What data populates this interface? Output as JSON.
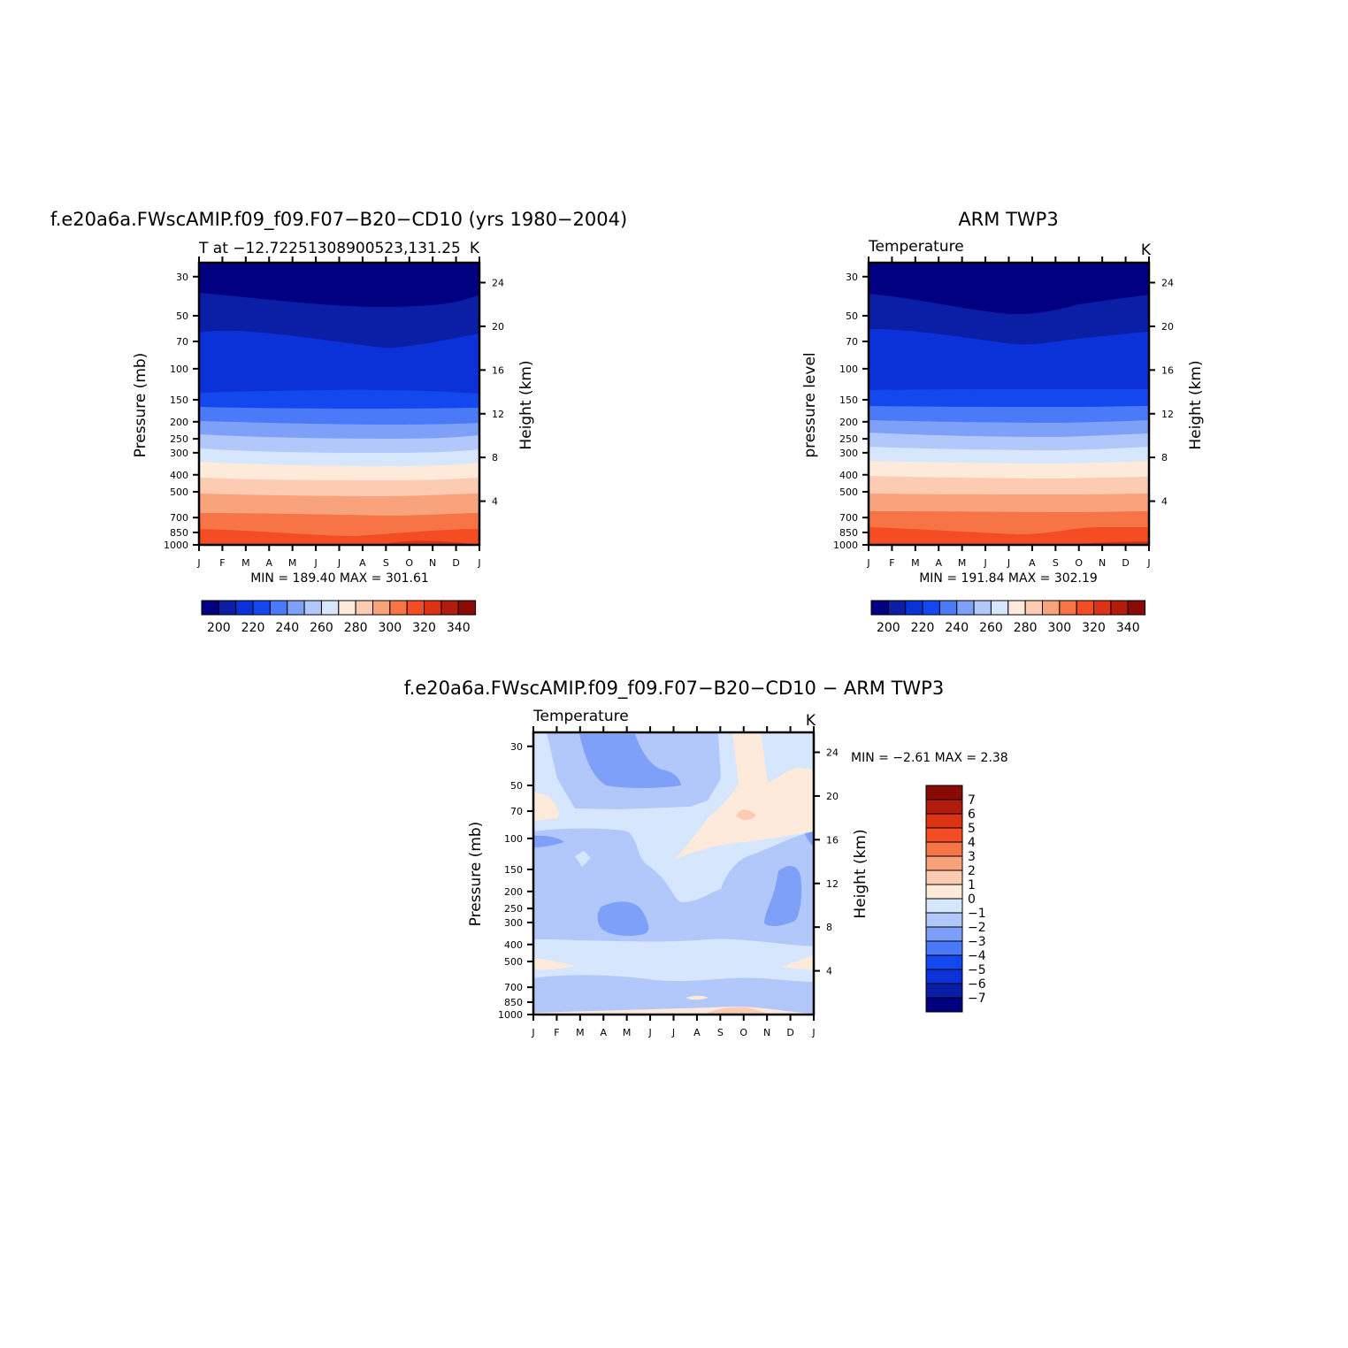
{
  "months": [
    "J",
    "F",
    "M",
    "A",
    "M",
    "J",
    "J",
    "A",
    "S",
    "O",
    "N",
    "D",
    "J"
  ],
  "pressure_ticks": [
    "30",
    "50",
    "70",
    "100",
    "150",
    "200",
    "250",
    "300",
    "400",
    "500",
    "700",
    "850",
    "1000"
  ],
  "height_ticks": [
    "24",
    "20",
    "16",
    "12",
    "8",
    "4"
  ],
  "palette": [
    "#000080",
    "#0a1ea6",
    "#0b32d8",
    "#1448ef",
    "#4a7af8",
    "#7ea0f8",
    "#b2c8fa",
    "#d6e6fd",
    "#feeada",
    "#fccbb1",
    "#f8a37c",
    "#f67446",
    "#f44d24",
    "#dc3314",
    "#b11c0c",
    "#8a0a05"
  ],
  "chart_data": [
    {
      "type": "contour",
      "title": "f.e20a6a.FWscAMIP.f09_f09.F07−B20−CD10 (yrs 1980−2004)",
      "subtitle_left": "T at −12.72251308900523,131.25",
      "subtitle_right": "K",
      "ylabel": "Pressure (mb)",
      "ylabel_right": "Height (km)",
      "xlabel": "",
      "min_max": "MIN = 189.40 MAX = 301.61",
      "levels": [
        200,
        210,
        220,
        230,
        240,
        250,
        260,
        270,
        280,
        290,
        300,
        310,
        320,
        330,
        340
      ],
      "level_labels": [
        "200",
        "220",
        "240",
        "260",
        "280",
        "300",
        "320",
        "340"
      ],
      "band_boundaries_mb": [
        1000,
        930,
        800,
        600,
        480,
        380,
        300,
        240,
        185,
        140,
        90,
        60,
        35
      ]
    },
    {
      "type": "contour",
      "title": "ARM TWP3",
      "subtitle_left": "Temperature",
      "subtitle_right": "K",
      "ylabel": "pressure level",
      "ylabel_right": "Height (km)",
      "xlabel": "",
      "min_max": "MIN = 191.84 MAX = 302.19",
      "levels": [
        200,
        210,
        220,
        230,
        240,
        250,
        260,
        270,
        280,
        290,
        300,
        310,
        320,
        330,
        340
      ],
      "level_labels": [
        "200",
        "220",
        "240",
        "260",
        "280",
        "300",
        "320",
        "340"
      ],
      "band_boundaries_mb": [
        1000,
        880,
        600,
        480,
        380,
        300,
        240,
        185,
        140,
        90,
        60,
        35
      ]
    },
    {
      "type": "contour",
      "title": "f.e20a6a.FWscAMIP.f09_f09.F07−B20−CD10 − ARM TWP3",
      "subtitle_left": "Temperature",
      "subtitle_right": "K",
      "ylabel": "Pressure (mb)",
      "ylabel_right": "Height (km)",
      "xlabel": "",
      "min_max": "MIN = −2.61 MAX = 2.38",
      "levels": [
        -7,
        -6,
        -5,
        -4,
        -3,
        -2,
        -1,
        0,
        1,
        2,
        3,
        4,
        5,
        6,
        7
      ],
      "level_labels": [
        "7",
        "6",
        "5",
        "4",
        "3",
        "2",
        "1",
        "0",
        "−1",
        "−2",
        "−3",
        "−4",
        "−5",
        "−6",
        "−7"
      ]
    }
  ]
}
